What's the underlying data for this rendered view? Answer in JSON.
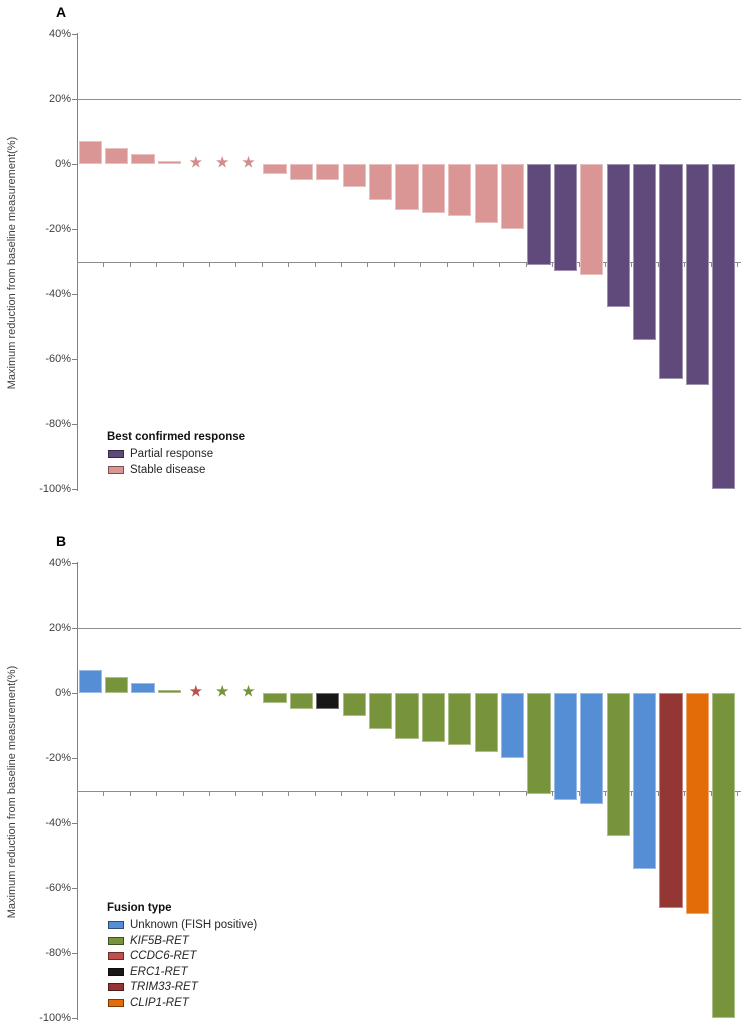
{
  "palette": {
    "partial_response": "#604a7b",
    "stable_disease": "#d99694",
    "star_pink": "#d28e8c",
    "unknown_fish": "#558ed5",
    "kif5b": "#77933c",
    "ccdc6": "#c0504d",
    "erc1": "#171717",
    "trim33": "#943634",
    "clip1": "#e36c09",
    "axis_line": "#808080",
    "grid_line": "#8c8c8c",
    "tick_text": "#404040"
  },
  "chart_data": [
    {
      "type": "bar",
      "panel_label": "A",
      "ylabel": "Maximum reduction from baseline measurement(%)",
      "ylim": [
        -100,
        40
      ],
      "ytick_labels": [
        "40%",
        "20%",
        "0%",
        "-20%",
        "-40%",
        "-60%",
        "-80%",
        "-100%"
      ],
      "reference_lines_pct": [
        20,
        -30
      ],
      "grid": "partial",
      "legend_position": "inside-lower-left",
      "legend_title": "Best confirmed response",
      "legend": [
        {
          "label": "Partial response",
          "color": "partial_response",
          "italic": false
        },
        {
          "label": "Stable disease",
          "color": "stable_disease",
          "italic": false
        }
      ],
      "bars": [
        {
          "v": 7,
          "c": "stable_disease"
        },
        {
          "v": 5,
          "c": "stable_disease"
        },
        {
          "v": 3,
          "c": "stable_disease"
        },
        {
          "v": 1,
          "c": "stable_disease"
        },
        {
          "v": 0,
          "c": "star_pink",
          "marker": "star"
        },
        {
          "v": 0,
          "c": "star_pink",
          "marker": "star"
        },
        {
          "v": 0,
          "c": "star_pink",
          "marker": "star"
        },
        {
          "v": -3,
          "c": "stable_disease"
        },
        {
          "v": -5,
          "c": "stable_disease"
        },
        {
          "v": -5,
          "c": "stable_disease"
        },
        {
          "v": -7,
          "c": "stable_disease"
        },
        {
          "v": -11,
          "c": "stable_disease"
        },
        {
          "v": -14,
          "c": "stable_disease"
        },
        {
          "v": -15,
          "c": "stable_disease"
        },
        {
          "v": -16,
          "c": "stable_disease"
        },
        {
          "v": -18,
          "c": "stable_disease"
        },
        {
          "v": -20,
          "c": "stable_disease"
        },
        {
          "v": -31,
          "c": "partial_response"
        },
        {
          "v": -33,
          "c": "partial_response"
        },
        {
          "v": -34,
          "c": "stable_disease"
        },
        {
          "v": -44,
          "c": "partial_response"
        },
        {
          "v": -54,
          "c": "partial_response"
        },
        {
          "v": -66,
          "c": "partial_response"
        },
        {
          "v": -68,
          "c": "partial_response"
        },
        {
          "v": -100,
          "c": "partial_response"
        }
      ]
    },
    {
      "type": "bar",
      "panel_label": "B",
      "ylabel": "Maximum reduction from baseline measurement(%)",
      "ylim": [
        -100,
        40
      ],
      "ytick_labels": [
        "40%",
        "20%",
        "0%",
        "-20%",
        "-40%",
        "-60%",
        "-80%",
        "-100%"
      ],
      "reference_lines_pct": [
        20,
        -30
      ],
      "grid": "partial",
      "legend_position": "inside-lower-left",
      "legend_title": "Fusion type",
      "legend": [
        {
          "label": "Unknown (FISH positive)",
          "color": "unknown_fish",
          "italic": false
        },
        {
          "label": "KIF5B-RET",
          "color": "kif5b",
          "italic": true
        },
        {
          "label": "CCDC6-RET",
          "color": "ccdc6",
          "italic": true
        },
        {
          "label": "ERC1-RET",
          "color": "erc1",
          "italic": true
        },
        {
          "label": "TRIM33-RET",
          "color": "trim33",
          "italic": true
        },
        {
          "label": "CLIP1-RET",
          "color": "clip1",
          "italic": true
        }
      ],
      "bars": [
        {
          "v": 7,
          "c": "unknown_fish"
        },
        {
          "v": 5,
          "c": "kif5b"
        },
        {
          "v": 3,
          "c": "unknown_fish"
        },
        {
          "v": 1,
          "c": "kif5b"
        },
        {
          "v": 0,
          "c": "ccdc6",
          "marker": "star"
        },
        {
          "v": 0,
          "c": "kif5b",
          "marker": "star"
        },
        {
          "v": 0,
          "c": "kif5b",
          "marker": "star"
        },
        {
          "v": -3,
          "c": "kif5b"
        },
        {
          "v": -5,
          "c": "kif5b"
        },
        {
          "v": -5,
          "c": "erc1"
        },
        {
          "v": -7,
          "c": "kif5b"
        },
        {
          "v": -11,
          "c": "kif5b"
        },
        {
          "v": -14,
          "c": "kif5b"
        },
        {
          "v": -15,
          "c": "kif5b"
        },
        {
          "v": -16,
          "c": "kif5b"
        },
        {
          "v": -18,
          "c": "kif5b"
        },
        {
          "v": -20,
          "c": "unknown_fish"
        },
        {
          "v": -31,
          "c": "kif5b"
        },
        {
          "v": -33,
          "c": "unknown_fish"
        },
        {
          "v": -34,
          "c": "unknown_fish"
        },
        {
          "v": -44,
          "c": "kif5b"
        },
        {
          "v": -54,
          "c": "unknown_fish"
        },
        {
          "v": -66,
          "c": "trim33"
        },
        {
          "v": -68,
          "c": "clip1"
        },
        {
          "v": -100,
          "c": "kif5b"
        }
      ]
    }
  ]
}
